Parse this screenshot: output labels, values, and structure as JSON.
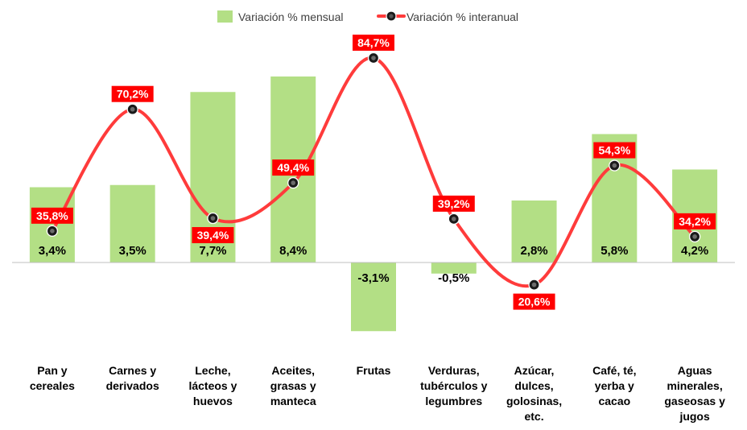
{
  "chart_data": {
    "type": "bar",
    "title": "",
    "xlabel": "",
    "ylabel": "",
    "categories": [
      "Pan y cereales",
      "Carnes y derivados",
      "Leche, lácteos y huevos",
      "Aceites, grasas y manteca",
      "Frutas",
      "Verduras, tubérculos y legumbres",
      "Azúcar, dulces, golosinas, etc.",
      "Café, té, yerba y cacao",
      "Aguas minerales, gaseosas y jugos"
    ],
    "category_lines": [
      [
        "Pan y",
        "cereales"
      ],
      [
        "Carnes y",
        "derivados"
      ],
      [
        "Leche,",
        "lácteos y",
        "huevos"
      ],
      [
        "Aceites,",
        "grasas y",
        "manteca"
      ],
      [
        "Frutas"
      ],
      [
        "Verduras,",
        "tubérculos y",
        "legumbres"
      ],
      [
        "Azúcar,",
        "dulces,",
        "golosinas,",
        "etc."
      ],
      [
        "Café, té,",
        "yerba y",
        "cacao"
      ],
      [
        "Aguas",
        "minerales,",
        "gaseosas y",
        "jugos"
      ]
    ],
    "series": [
      {
        "name": "Variación % mensual",
        "type": "bar",
        "color": "#b3df85",
        "values": [
          3.4,
          3.5,
          7.7,
          8.4,
          -3.1,
          -0.5,
          2.8,
          5.8,
          4.2
        ],
        "labels": [
          "3,4%",
          "3,5%",
          "7,7%",
          "8,4%",
          "-3,1%",
          "-0,5%",
          "2,8%",
          "5,8%",
          "4,2%"
        ]
      },
      {
        "name": "Variación % interanual",
        "type": "line",
        "color": "#ff3b3b",
        "label_bg": "#ff0000",
        "values": [
          35.8,
          70.2,
          39.4,
          49.4,
          84.7,
          39.2,
          20.6,
          54.3,
          34.2
        ],
        "labels": [
          "35,8%",
          "70,2%",
          "39,4%",
          "49,4%",
          "84,7%",
          "39,2%",
          "20,6%",
          "54,3%",
          "34,2%"
        ]
      }
    ],
    "legend_position": "top",
    "grid": false
  }
}
